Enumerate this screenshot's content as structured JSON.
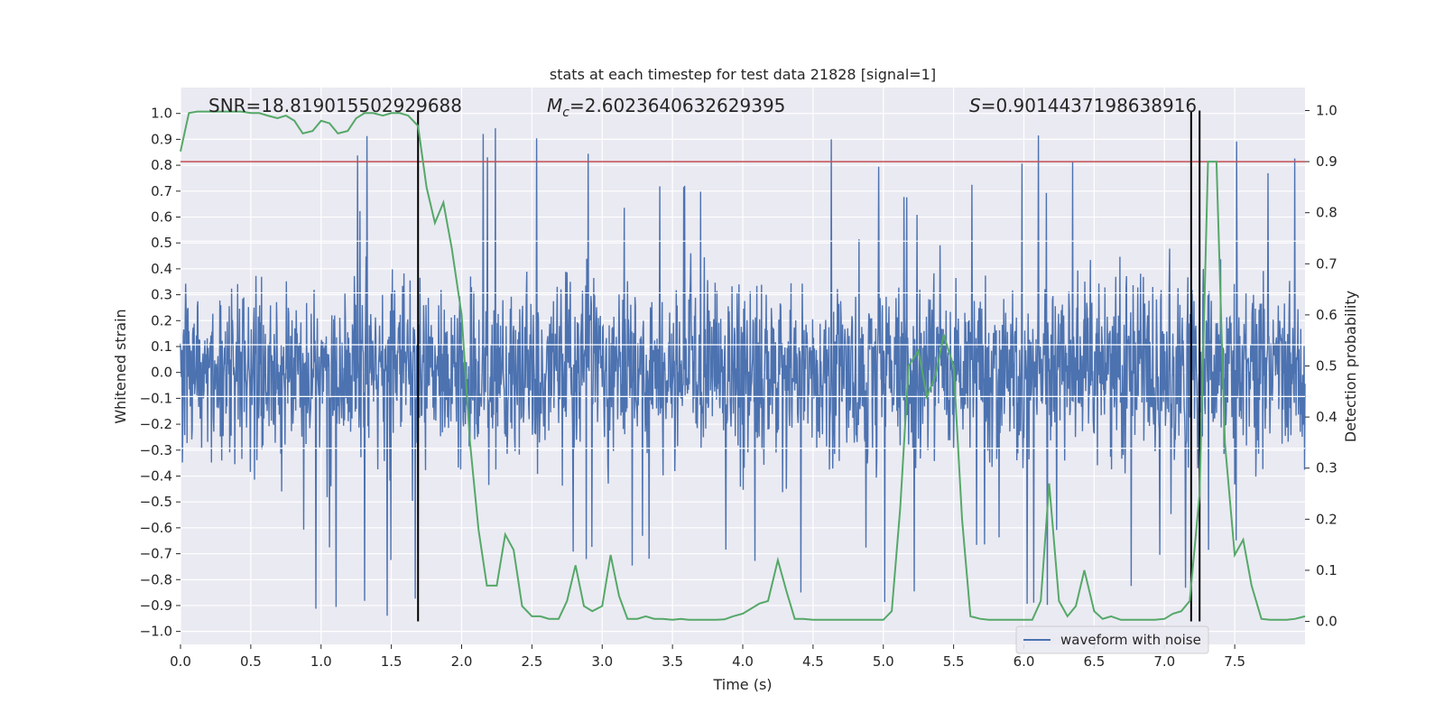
{
  "chart_data": {
    "type": "line",
    "title": "stats at each timestep for test data 21828 [signal=1]",
    "xlabel": "Time (s)",
    "ylabel": "Whitened strain",
    "y2label": "Detection probability",
    "xlim": [
      0.0,
      8.0
    ],
    "ylim": [
      -1.05,
      1.1
    ],
    "y2lim": [
      -0.045,
      1.045
    ],
    "x_ticks": [
      0.0,
      0.5,
      1.0,
      1.5,
      2.0,
      2.5,
      3.0,
      3.5,
      4.0,
      4.5,
      5.0,
      5.5,
      6.0,
      6.5,
      7.0,
      7.5
    ],
    "x_tick_labels": [
      "0.0",
      "0.5",
      "1.0",
      "1.5",
      "2.0",
      "2.5",
      "3.0",
      "3.5",
      "4.0",
      "4.5",
      "5.0",
      "5.5",
      "6.0",
      "6.5",
      "7.0",
      "7.5"
    ],
    "y_ticks": [
      1.0,
      0.9,
      0.8,
      0.7,
      0.6,
      0.5,
      0.4,
      0.3,
      0.2,
      0.1,
      0.0,
      -0.1,
      -0.2,
      -0.3,
      -0.4,
      -0.5,
      -0.6,
      -0.7,
      -0.8,
      -0.9,
      -1.0
    ],
    "y_tick_labels": [
      "1.0",
      "0.9",
      "0.8",
      "0.7",
      "0.6",
      "0.5",
      "0.4",
      "0.3",
      "0.2",
      "0.1",
      "0.0",
      "−0.1",
      "−0.2",
      "−0.3",
      "−0.4",
      "−0.5",
      "−0.6",
      "−0.7",
      "−0.8",
      "−0.9",
      "−1.0"
    ],
    "y2_ticks": [
      1.0,
      0.9,
      0.8,
      0.7,
      0.6,
      0.5,
      0.4,
      0.3,
      0.2,
      0.1,
      0.0
    ],
    "y2_tick_labels": [
      "1.0",
      "0.9",
      "0.8",
      "0.7",
      "0.6",
      "0.5",
      "0.4",
      "0.3",
      "0.2",
      "0.1",
      "0.0"
    ],
    "annotations": {
      "snr": "SNR=18.819015502929688",
      "mc_symbol": "M",
      "mc_subscript": "c",
      "mc_value": "=2.6023640632629395",
      "s_symbol": "S",
      "s_value": "=0.9014437198638916"
    },
    "threshold": {
      "y": 0.9,
      "axis": "right",
      "color": "#c44e52"
    },
    "vertical_lines": [
      1.69,
      7.19,
      7.25
    ],
    "series": [
      {
        "name": "waveform with noise",
        "axis": "left",
        "color": "#4c72b0",
        "description": "dense whitened strain noise, typical amplitude +/-0.45 with spikes up to ~0.95"
      },
      {
        "name": "detection probability",
        "axis": "right",
        "color": "#55a868",
        "x": [
          0.0,
          0.06,
          0.12,
          0.18,
          0.25,
          0.31,
          0.37,
          0.43,
          0.5,
          0.56,
          0.62,
          0.69,
          0.75,
          0.81,
          0.87,
          0.94,
          1.0,
          1.06,
          1.12,
          1.19,
          1.25,
          1.31,
          1.37,
          1.44,
          1.5,
          1.56,
          1.62,
          1.69,
          1.75,
          1.81,
          1.87,
          1.93,
          2.0,
          2.06,
          2.12,
          2.18,
          2.25,
          2.31,
          2.37,
          2.43,
          2.5,
          2.56,
          2.62,
          2.69,
          2.75,
          2.81,
          2.87,
          2.93,
          3.0,
          3.06,
          3.12,
          3.18,
          3.25,
          3.31,
          3.37,
          3.43,
          3.5,
          3.56,
          3.62,
          3.69,
          3.75,
          3.81,
          3.87,
          3.93,
          4.0,
          4.06,
          4.12,
          4.18,
          4.25,
          4.31,
          4.37,
          4.43,
          4.5,
          4.56,
          4.62,
          4.69,
          4.75,
          4.81,
          4.87,
          4.93,
          5.0,
          5.06,
          5.12,
          5.18,
          5.25,
          5.31,
          5.37,
          5.43,
          5.5,
          5.56,
          5.62,
          5.69,
          5.75,
          5.81,
          5.87,
          5.93,
          6.0,
          6.06,
          6.12,
          6.18,
          6.25,
          6.31,
          6.37,
          6.43,
          6.5,
          6.56,
          6.62,
          6.69,
          6.75,
          6.81,
          6.87,
          6.93,
          7.0,
          7.06,
          7.12,
          7.18,
          7.25,
          7.31,
          7.37,
          7.43,
          7.5,
          7.56,
          7.62,
          7.69,
          7.75,
          7.81,
          7.87,
          7.93,
          8.0
        ],
        "values": [
          0.92,
          0.995,
          0.998,
          0.998,
          0.998,
          0.998,
          0.998,
          0.998,
          0.995,
          0.995,
          0.99,
          0.985,
          0.99,
          0.98,
          0.955,
          0.96,
          0.98,
          0.975,
          0.955,
          0.96,
          0.985,
          0.995,
          0.995,
          0.99,
          0.995,
          0.995,
          0.99,
          0.97,
          0.85,
          0.78,
          0.82,
          0.73,
          0.6,
          0.35,
          0.18,
          0.07,
          0.07,
          0.17,
          0.14,
          0.03,
          0.01,
          0.01,
          0.005,
          0.005,
          0.04,
          0.11,
          0.03,
          0.02,
          0.03,
          0.13,
          0.05,
          0.005,
          0.005,
          0.01,
          0.005,
          0.005,
          0.003,
          0.005,
          0.003,
          0.003,
          0.003,
          0.003,
          0.004,
          0.01,
          0.015,
          0.025,
          0.035,
          0.04,
          0.12,
          0.06,
          0.005,
          0.005,
          0.003,
          0.003,
          0.003,
          0.003,
          0.003,
          0.003,
          0.003,
          0.003,
          0.003,
          0.02,
          0.22,
          0.5,
          0.53,
          0.44,
          0.48,
          0.56,
          0.5,
          0.2,
          0.01,
          0.005,
          0.003,
          0.003,
          0.003,
          0.003,
          0.003,
          0.003,
          0.04,
          0.27,
          0.04,
          0.01,
          0.03,
          0.1,
          0.02,
          0.005,
          0.01,
          0.003,
          0.003,
          0.003,
          0.003,
          0.003,
          0.005,
          0.015,
          0.02,
          0.04,
          0.25,
          0.9,
          0.9,
          0.35,
          0.13,
          0.16,
          0.07,
          0.005,
          0.003,
          0.003,
          0.003,
          0.005,
          0.01
        ]
      }
    ],
    "legend": {
      "entries": [
        "waveform with noise"
      ],
      "location": "lower-right"
    }
  }
}
